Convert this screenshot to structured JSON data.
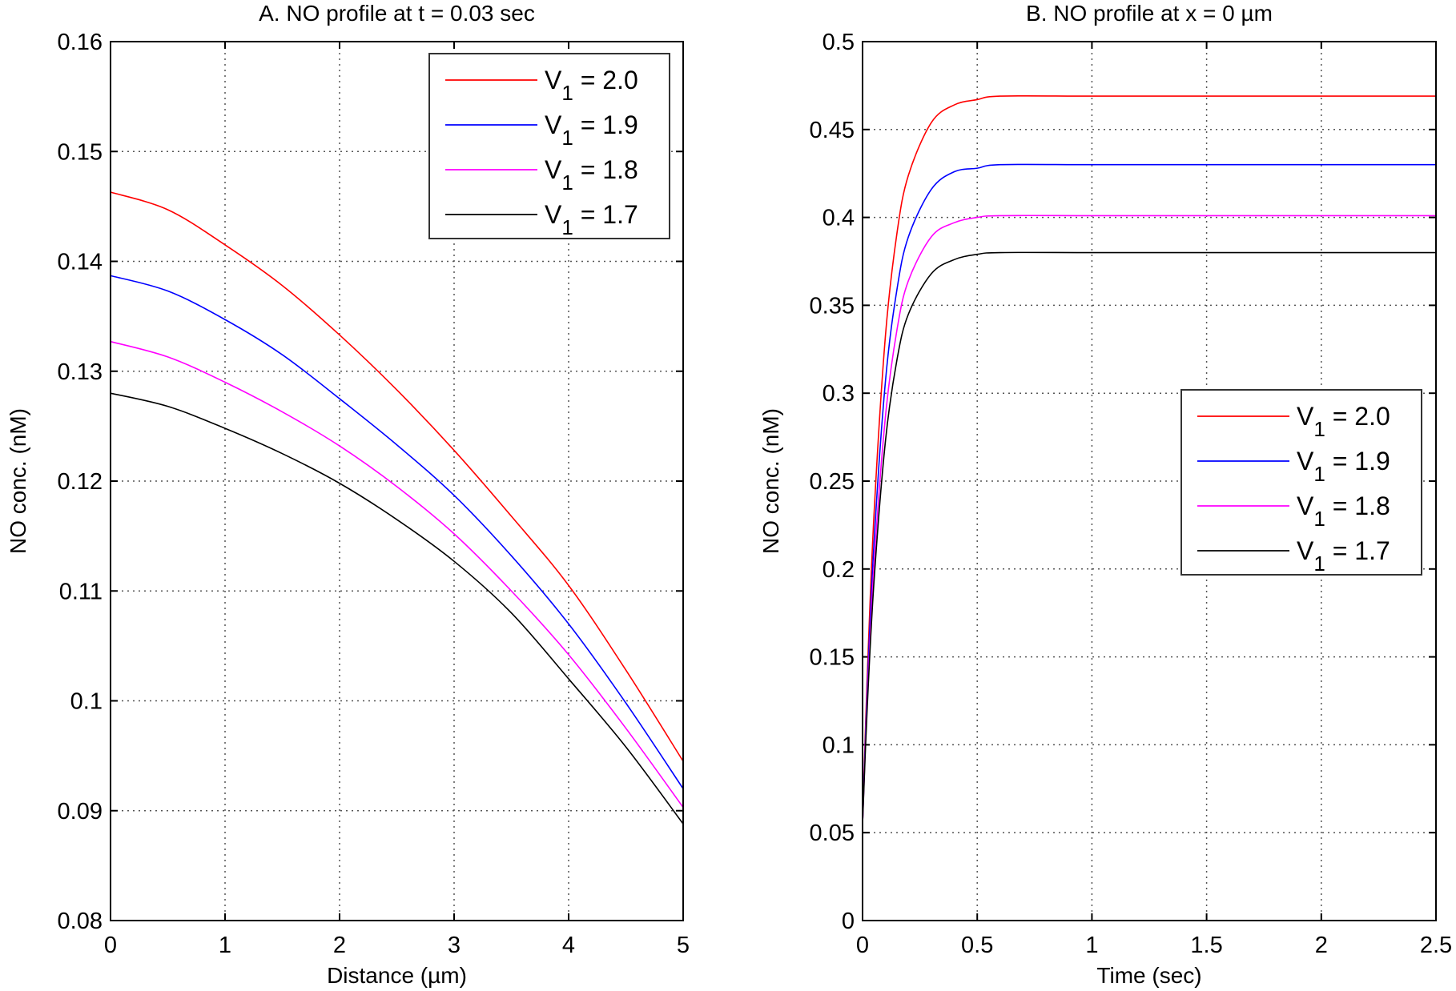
{
  "chart_data": [
    {
      "type": "line",
      "title": "A. NO profile at t = 0.03 sec",
      "xlabel": "Distance (µm)",
      "ylabel": "NO conc. (nM)",
      "xlim": [
        0,
        5
      ],
      "ylim": [
        0.08,
        0.16
      ],
      "xticks": [
        "0",
        "1",
        "2",
        "3",
        "4",
        "5"
      ],
      "yticks": [
        "0.08",
        "0.09",
        "0.1",
        "0.11",
        "0.12",
        "0.13",
        "0.14",
        "0.15",
        "0.16"
      ],
      "grid": true,
      "legend_position": "top-right",
      "x": [
        0,
        0.5,
        1,
        1.5,
        2,
        2.5,
        3,
        3.5,
        4,
        4.5,
        5
      ],
      "series": [
        {
          "name": "V1 = 2.0",
          "label": {
            "base": "V",
            "sub": "1",
            "rest": " = 2.0"
          },
          "color": "#ff0000",
          "values": [
            0.1463,
            0.1447,
            0.1415,
            0.1378,
            0.1333,
            0.1283,
            0.1228,
            0.1168,
            0.1105,
            0.1028,
            0.0945
          ]
        },
        {
          "name": "V1 = 1.9",
          "label": {
            "base": "V",
            "sub": "1",
            "rest": " = 1.9"
          },
          "color": "#0000ff",
          "values": [
            0.1387,
            0.1373,
            0.1347,
            0.1315,
            0.1275,
            0.1233,
            0.1187,
            0.1132,
            0.107,
            0.0998,
            0.092
          ]
        },
        {
          "name": "V1 = 1.8",
          "label": {
            "base": "V",
            "sub": "1",
            "rest": " = 1.8"
          },
          "color": "#ff00ff",
          "values": [
            0.1327,
            0.1313,
            0.129,
            0.1263,
            0.1232,
            0.1195,
            0.1152,
            0.11,
            0.1042,
            0.0975,
            0.0903
          ]
        },
        {
          "name": "V1 = 1.7",
          "label": {
            "base": "V",
            "sub": "1",
            "rest": " = 1.7"
          },
          "color": "#000000",
          "values": [
            0.128,
            0.1268,
            0.1248,
            0.1225,
            0.1198,
            0.1165,
            0.1127,
            0.108,
            0.102,
            0.0958,
            0.0888
          ]
        }
      ]
    },
    {
      "type": "line",
      "title": "B. NO profile at x = 0 µm",
      "xlabel": "Time (sec)",
      "ylabel": "NO conc. (nM)",
      "xlim": [
        0,
        2.5
      ],
      "ylim": [
        0,
        0.5
      ],
      "xticks": [
        "0",
        "0.5",
        "1",
        "1.5",
        "2",
        "2.5"
      ],
      "yticks": [
        "0",
        "0.05",
        "0.1",
        "0.15",
        "0.2",
        "0.25",
        "0.3",
        "0.35",
        "0.4",
        "0.45",
        "0.5"
      ],
      "grid": true,
      "legend_position": "center-right",
      "x": [
        0,
        0.02,
        0.05,
        0.1,
        0.15,
        0.2,
        0.3,
        0.4,
        0.5,
        0.6,
        1,
        1.5,
        2,
        2.5
      ],
      "series": [
        {
          "name": "V1 = 2.0",
          "label": {
            "base": "V",
            "sub": "1",
            "rest": " = 2.0"
          },
          "color": "#ff0000",
          "values": [
            0.055,
            0.137,
            0.231,
            0.333,
            0.391,
            0.424,
            0.454,
            0.464,
            0.467,
            0.469,
            0.469,
            0.469,
            0.469,
            0.469
          ]
        },
        {
          "name": "V1 = 1.9",
          "label": {
            "base": "V",
            "sub": "1",
            "rest": " = 1.9"
          },
          "color": "#0000ff",
          "values": [
            0.055,
            0.13,
            0.215,
            0.307,
            0.359,
            0.389,
            0.416,
            0.426,
            0.428,
            0.43,
            0.43,
            0.43,
            0.43,
            0.43
          ]
        },
        {
          "name": "V1 = 1.8",
          "label": {
            "base": "V",
            "sub": "1",
            "rest": " = 1.8"
          },
          "color": "#ff00ff",
          "values": [
            0.055,
            0.124,
            0.202,
            0.287,
            0.336,
            0.364,
            0.389,
            0.397,
            0.4,
            0.401,
            0.401,
            0.401,
            0.401,
            0.401
          ]
        },
        {
          "name": "V1 = 1.7",
          "label": {
            "base": "V",
            "sub": "1",
            "rest": " = 1.7"
          },
          "color": "#000000",
          "values": [
            0.055,
            0.12,
            0.193,
            0.273,
            0.319,
            0.345,
            0.368,
            0.376,
            0.379,
            0.38,
            0.38,
            0.38,
            0.38,
            0.38
          ]
        }
      ]
    }
  ]
}
